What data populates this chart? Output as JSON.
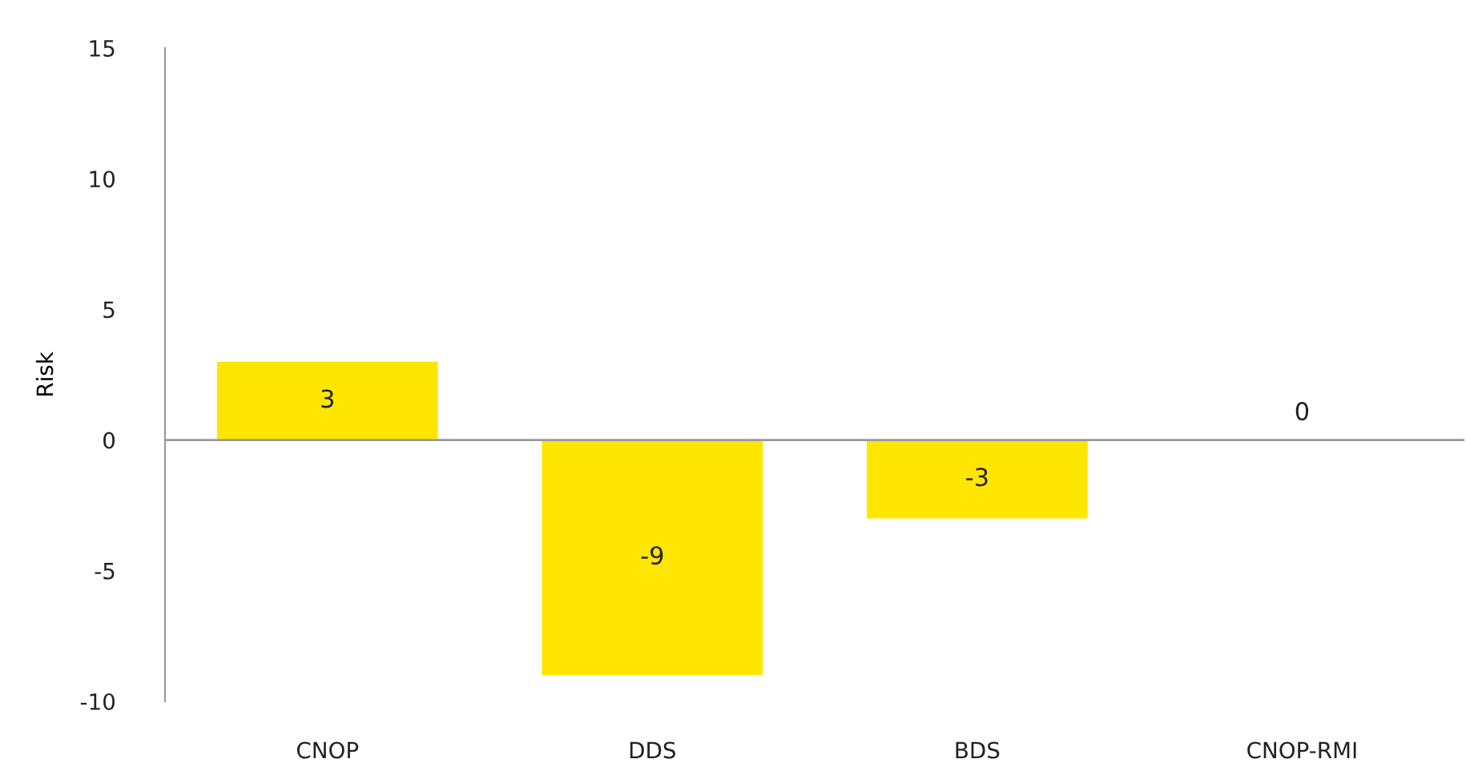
{
  "chart_data": {
    "type": "bar",
    "ylabel": "Risk",
    "categories": [
      "CNOP",
      "DDS",
      "BDS",
      "CNOP-RMI"
    ],
    "values": [
      3,
      -9,
      -3,
      0
    ],
    "color": "#ffe600",
    "ylim": [
      -10,
      15
    ],
    "yticks": [
      -10,
      -5,
      0,
      5,
      10,
      15
    ],
    "grid": false,
    "data_labels": true,
    "ref_lines": [
      {
        "axis": "y",
        "value": 0,
        "color": "#999999"
      }
    ]
  }
}
